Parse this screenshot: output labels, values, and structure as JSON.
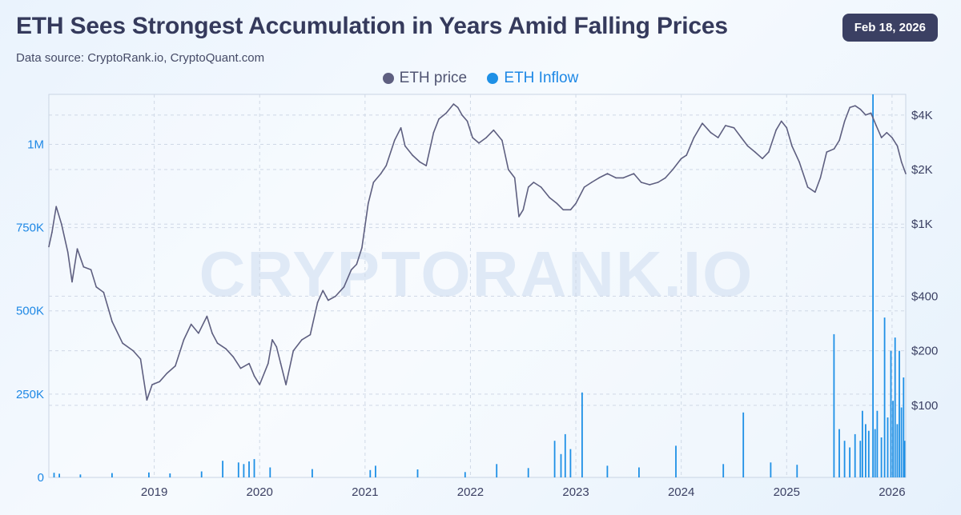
{
  "header": {
    "title": "ETH Sees Strongest Accumulation in Years Amid Falling Prices",
    "subtitle": "Data source: CryptoRank.io, CryptoQuant.com",
    "date": "Feb 18, 2026"
  },
  "watermark": "CRYPTORANK.IO",
  "colors": {
    "price_line": "#5e5f80",
    "inflow_bars": "#1e90e6",
    "left_axis_text": "#1e88e5",
    "right_axis_text": "#3b4063",
    "grid": "#cfd8e6"
  },
  "chart_data": {
    "type": "line",
    "title": "ETH Sees Strongest Accumulation in Years Amid Falling Prices",
    "legend": [
      {
        "label": "ETH price",
        "color": "#5e5f80"
      },
      {
        "label": "ETH Inflow",
        "color": "#1e90e6"
      }
    ],
    "legend_position": "top-center",
    "grid": true,
    "x_range": [
      2018.0,
      2026.13
    ],
    "x_ticks": [
      {
        "value": 2019,
        "label": "2019"
      },
      {
        "value": 2020,
        "label": "2020"
      },
      {
        "value": 2021,
        "label": "2021"
      },
      {
        "value": 2022,
        "label": "2022"
      },
      {
        "value": 2023,
        "label": "2023"
      },
      {
        "value": 2024,
        "label": "2024"
      },
      {
        "value": 2025,
        "label": "2025"
      },
      {
        "value": 2026,
        "label": "2026"
      }
    ],
    "left_axis": {
      "series": "ETH Inflow",
      "scale": "linear",
      "range": [
        0,
        1150000
      ],
      "ticks": [
        {
          "value": 0,
          "label": "0"
        },
        {
          "value": 250000,
          "label": "250K"
        },
        {
          "value": 500000,
          "label": "500K"
        },
        {
          "value": 750000,
          "label": "750K"
        },
        {
          "value": 1000000,
          "label": "1M"
        }
      ]
    },
    "right_axis": {
      "series": "ETH price",
      "scale": "log",
      "range": [
        40,
        5200
      ],
      "ticks": [
        {
          "value": 100,
          "label": "$100"
        },
        {
          "value": 200,
          "label": "$200"
        },
        {
          "value": 400,
          "label": "$400"
        },
        {
          "value": 1000,
          "label": "$1K"
        },
        {
          "value": 2000,
          "label": "$2K"
        },
        {
          "value": 4000,
          "label": "$4K"
        }
      ]
    },
    "series": [
      {
        "name": "ETH price",
        "axis": "right",
        "kind": "line",
        "x": [
          2018.0,
          2018.03,
          2018.07,
          2018.12,
          2018.18,
          2018.22,
          2018.27,
          2018.33,
          2018.4,
          2018.45,
          2018.52,
          2018.6,
          2018.7,
          2018.8,
          2018.87,
          2018.93,
          2018.98,
          2019.05,
          2019.12,
          2019.2,
          2019.28,
          2019.35,
          2019.42,
          2019.5,
          2019.55,
          2019.6,
          2019.68,
          2019.75,
          2019.82,
          2019.9,
          2019.95,
          2020.0,
          2020.08,
          2020.12,
          2020.16,
          2020.2,
          2020.25,
          2020.32,
          2020.4,
          2020.48,
          2020.55,
          2020.6,
          2020.65,
          2020.72,
          2020.8,
          2020.87,
          2020.92,
          2020.97,
          2021.03,
          2021.08,
          2021.15,
          2021.2,
          2021.28,
          2021.34,
          2021.38,
          2021.45,
          2021.52,
          2021.58,
          2021.65,
          2021.7,
          2021.77,
          2021.84,
          2021.88,
          2021.92,
          2021.97,
          2022.02,
          2022.08,
          2022.15,
          2022.22,
          2022.3,
          2022.36,
          2022.42,
          2022.46,
          2022.5,
          2022.55,
          2022.6,
          2022.67,
          2022.75,
          2022.82,
          2022.88,
          2022.95,
          2023.0,
          2023.08,
          2023.15,
          2023.22,
          2023.3,
          2023.38,
          2023.45,
          2023.55,
          2023.62,
          2023.7,
          2023.78,
          2023.85,
          2023.92,
          2024.0,
          2024.05,
          2024.12,
          2024.2,
          2024.28,
          2024.35,
          2024.42,
          2024.5,
          2024.57,
          2024.63,
          2024.7,
          2024.77,
          2024.83,
          2024.9,
          2024.95,
          2025.0,
          2025.05,
          2025.12,
          2025.2,
          2025.27,
          2025.32,
          2025.38,
          2025.45,
          2025.5,
          2025.55,
          2025.6,
          2025.65,
          2025.7,
          2025.75,
          2025.8,
          2025.85,
          2025.9,
          2025.95,
          2026.0,
          2026.05,
          2026.09,
          2026.13
        ],
        "values": [
          750,
          900,
          1250,
          1000,
          700,
          480,
          730,
          580,
          560,
          450,
          420,
          290,
          220,
          200,
          180,
          107,
          130,
          135,
          150,
          165,
          230,
          280,
          250,
          310,
          250,
          220,
          205,
          185,
          160,
          170,
          145,
          130,
          170,
          230,
          210,
          170,
          130,
          200,
          230,
          245,
          370,
          430,
          380,
          400,
          450,
          560,
          600,
          740,
          1300,
          1700,
          1900,
          2100,
          2900,
          3400,
          2700,
          2400,
          2200,
          2100,
          3200,
          3800,
          4100,
          4600,
          4400,
          4000,
          3700,
          3000,
          2800,
          3000,
          3300,
          2900,
          2000,
          1800,
          1100,
          1200,
          1600,
          1700,
          1600,
          1400,
          1300,
          1200,
          1200,
          1300,
          1600,
          1700,
          1800,
          1900,
          1800,
          1800,
          1900,
          1700,
          1650,
          1700,
          1800,
          2000,
          2300,
          2400,
          3000,
          3600,
          3200,
          3000,
          3500,
          3400,
          3000,
          2700,
          2500,
          2300,
          2500,
          3300,
          3700,
          3400,
          2700,
          2200,
          1600,
          1500,
          1800,
          2500,
          2600,
          2900,
          3700,
          4400,
          4500,
          4300,
          4000,
          4100,
          3500,
          3000,
          3200,
          3000,
          2700,
          2200,
          1900
        ]
      },
      {
        "name": "ETH Inflow",
        "axis": "left",
        "kind": "bar",
        "x": [
          2018.05,
          2018.1,
          2018.3,
          2018.6,
          2018.95,
          2019.15,
          2019.45,
          2019.65,
          2019.8,
          2019.85,
          2019.9,
          2019.95,
          2020.1,
          2020.5,
          2021.05,
          2021.1,
          2021.5,
          2021.95,
          2022.25,
          2022.55,
          2022.8,
          2022.86,
          2022.9,
          2022.95,
          2023.06,
          2023.3,
          2023.6,
          2023.95,
          2024.4,
          2024.59,
          2024.85,
          2025.1,
          2025.45,
          2025.5,
          2025.55,
          2025.6,
          2025.65,
          2025.7,
          2025.72,
          2025.75,
          2025.78,
          2025.82,
          2025.84,
          2025.86,
          2025.9,
          2025.93,
          2025.96,
          2025.99,
          2026.01,
          2026.03,
          2026.05,
          2026.07,
          2026.09,
          2026.11,
          2026.12
        ],
        "values": [
          14000,
          11000,
          9000,
          13000,
          15000,
          12000,
          18000,
          50000,
          45000,
          40000,
          48000,
          55000,
          30000,
          25000,
          22000,
          35000,
          24000,
          16000,
          40000,
          28000,
          110000,
          70000,
          130000,
          85000,
          255000,
          35000,
          30000,
          95000,
          40000,
          195000,
          45000,
          38000,
          430000,
          145000,
          110000,
          90000,
          130000,
          110000,
          200000,
          160000,
          140000,
          1150000,
          145000,
          200000,
          120000,
          480000,
          180000,
          380000,
          230000,
          420000,
          160000,
          380000,
          210000,
          300000,
          110000
        ]
      }
    ]
  }
}
